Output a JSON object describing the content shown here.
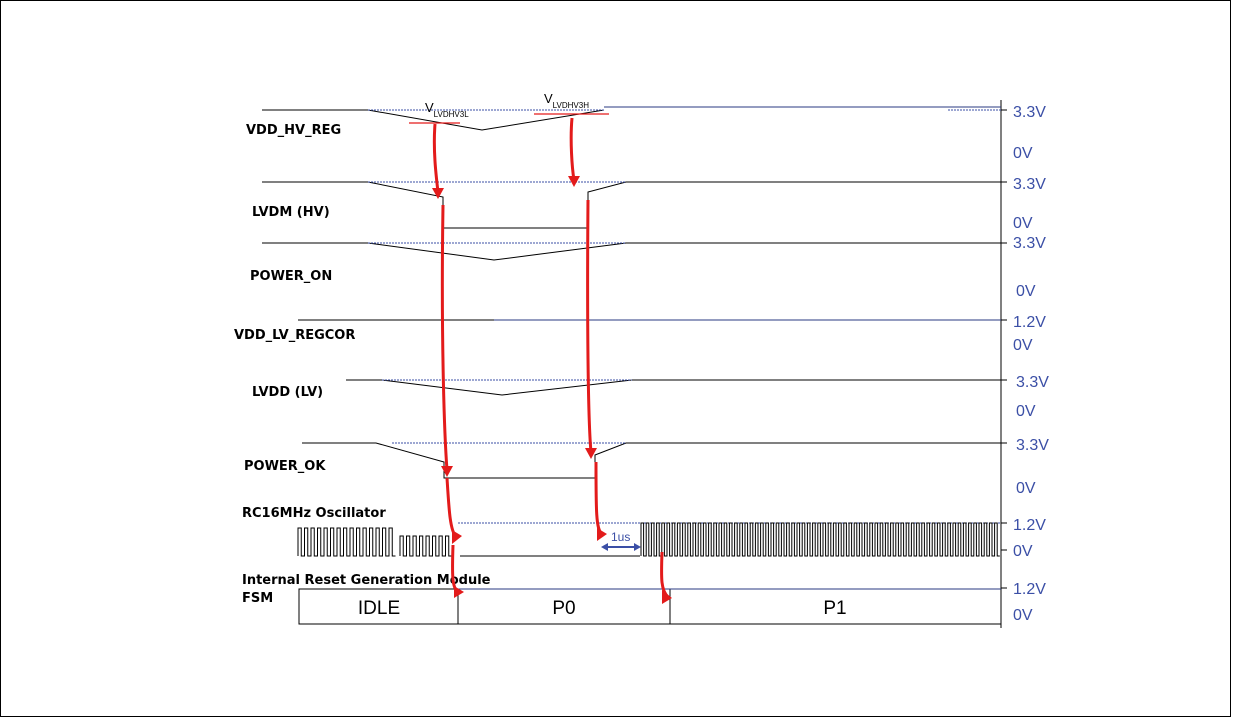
{
  "signals": [
    {
      "key": "vdd_hv_reg",
      "label": "VDD_HV_REG",
      "high": "3.3V",
      "low": "0V"
    },
    {
      "key": "lvdm_hv",
      "label": "LVDM (HV)",
      "high": "3.3V",
      "low": "0V"
    },
    {
      "key": "power_on",
      "label": "POWER_ON",
      "high": "3.3V",
      "low": "0V"
    },
    {
      "key": "vdd_lv_regcor",
      "label": "VDD_LV_REGCOR",
      "high": "1.2V",
      "low": "0V"
    },
    {
      "key": "lvdd_lv",
      "label": "LVDD (LV)",
      "high": "3.3V",
      "low": "0V"
    },
    {
      "key": "power_ok",
      "label": "POWER_OK",
      "high": "3.3V",
      "low": "0V"
    },
    {
      "key": "rc16mhz",
      "label": "RC16MHz Oscillator",
      "high": "1.2V",
      "low": "0V"
    },
    {
      "key": "fsm",
      "label": "Internal Reset Generation Module",
      "label2": "FSM",
      "high": "1.2V",
      "low": "0V"
    }
  ],
  "thresholds": {
    "low": {
      "main": "V",
      "sub": "LVDHV3L"
    },
    "high": {
      "main": "V",
      "sub": "LVDHV3H"
    }
  },
  "delay_label": "1us",
  "fsm_states": [
    "IDLE",
    "P0",
    "P1"
  ],
  "colors": {
    "arrow": "#e31b1b",
    "voltage": "#3b4fa6",
    "trace": "#000000"
  }
}
